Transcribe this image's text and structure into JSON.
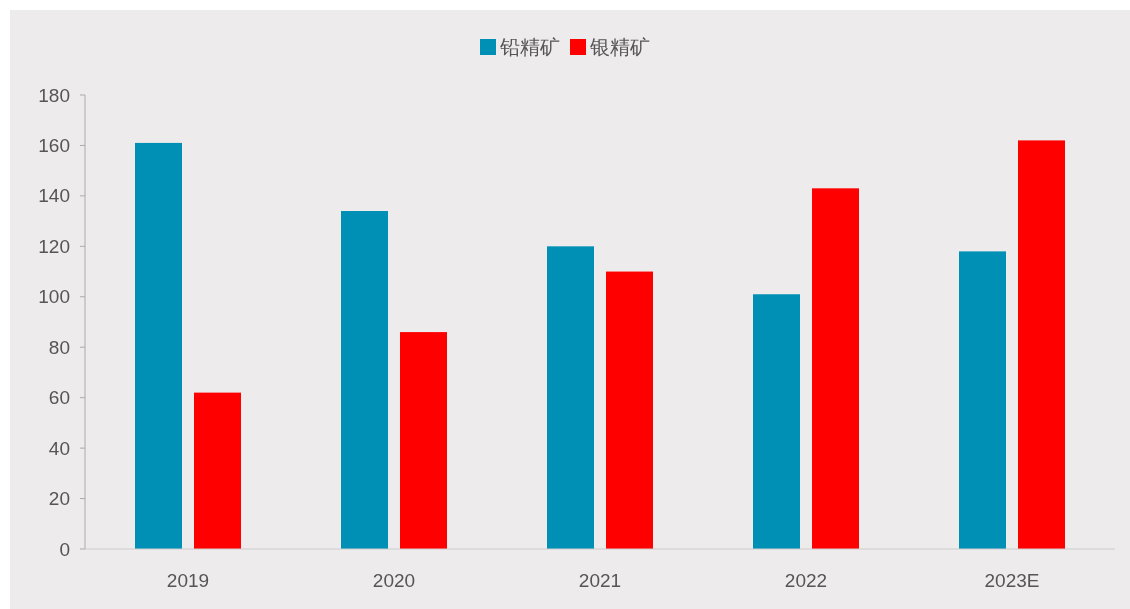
{
  "chart_data": {
    "type": "bar",
    "categories": [
      "2019",
      "2020",
      "2021",
      "2022",
      "2023E"
    ],
    "series": [
      {
        "name": "铅精矿",
        "color": "#0090b5",
        "values": [
          161,
          134,
          120,
          101,
          118
        ]
      },
      {
        "name": "银精矿",
        "color": "#ff0000",
        "values": [
          62,
          86,
          110,
          143,
          162
        ]
      }
    ],
    "ylim": [
      0,
      180
    ],
    "yticks": [
      0,
      20,
      40,
      60,
      80,
      100,
      120,
      140,
      160,
      180
    ],
    "grid": false,
    "legend": "top"
  }
}
